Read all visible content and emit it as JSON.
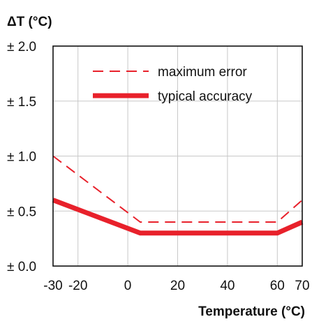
{
  "chart_data": {
    "type": "line",
    "ylabel": "ΔT (°C)",
    "xlabel": "Temperature (°C)",
    "xlim": [
      -30,
      70
    ],
    "ylim": [
      0,
      2.0
    ],
    "x_ticks": [
      {
        "value": -30,
        "label": "-30"
      },
      {
        "value": -20,
        "label": "-20"
      },
      {
        "value": 0,
        "label": "0"
      },
      {
        "value": 20,
        "label": "20"
      },
      {
        "value": 40,
        "label": "40"
      },
      {
        "value": 60,
        "label": "60"
      },
      {
        "value": 70,
        "label": "70"
      }
    ],
    "y_ticks": [
      {
        "value": 0.0,
        "label": "± 0.0"
      },
      {
        "value": 0.5,
        "label": "± 0.5"
      },
      {
        "value": 1.0,
        "label": "± 1.0"
      },
      {
        "value": 1.5,
        "label": "± 1.5"
      },
      {
        "value": 2.0,
        "label": "± 2.0"
      }
    ],
    "grid": true,
    "legend_position": "top-right",
    "series": [
      {
        "name": "maximum error",
        "style": "dashed",
        "color": "#e8212b",
        "points": [
          [
            -30,
            1.0
          ],
          [
            5,
            0.4
          ],
          [
            60,
            0.4
          ],
          [
            70,
            0.6
          ]
        ]
      },
      {
        "name": "typical accuracy",
        "style": "solid-thick",
        "color": "#e8212b",
        "points": [
          [
            -30,
            0.6
          ],
          [
            5,
            0.3
          ],
          [
            60,
            0.3
          ],
          [
            70,
            0.4
          ]
        ]
      }
    ]
  }
}
